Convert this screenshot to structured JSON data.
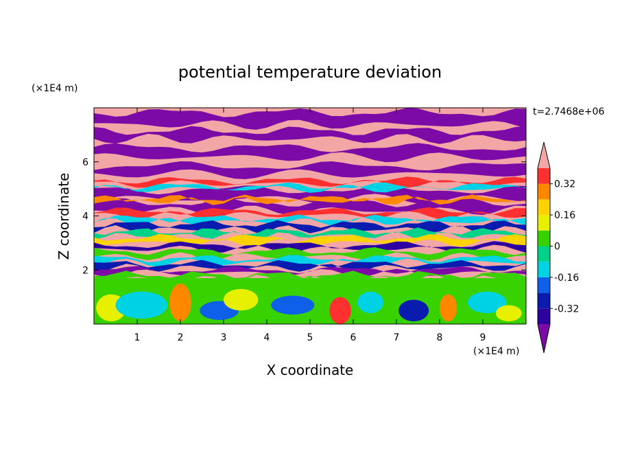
{
  "chart_data": {
    "type": "heatmap",
    "title": "potential temperature deviation",
    "xlabel": "X coordinate",
    "ylabel": "Z coordinate",
    "x_unit": "(×1E4 m)",
    "y_unit": "(×1E4 m)",
    "time_label": "t=2.7468e+06",
    "xlim": [
      0,
      10
    ],
    "ylim": [
      0,
      8
    ],
    "x_ticks": [
      "1",
      "2",
      "3",
      "4",
      "5",
      "6",
      "7",
      "8",
      "9"
    ],
    "y_ticks": [
      "2",
      "4",
      "6"
    ],
    "colorbar": {
      "levels": [
        -0.4,
        -0.32,
        -0.24,
        -0.16,
        -0.08,
        0,
        0.08,
        0.16,
        0.24,
        0.32,
        0.4
      ],
      "colors": [
        "#7b0aa6",
        "#2d00a0",
        "#0a1cb0",
        "#0f60e8",
        "#00d2e6",
        "#00d28a",
        "#38d200",
        "#e6f000",
        "#ffd200",
        "#ff8800",
        "#ff3030",
        "#f2a6a6"
      ],
      "labels": [
        "0.32",
        "0.16",
        "0",
        "-0.16",
        "-0.32"
      ],
      "extend": "both"
    },
    "grid": false,
    "legend": "right"
  }
}
